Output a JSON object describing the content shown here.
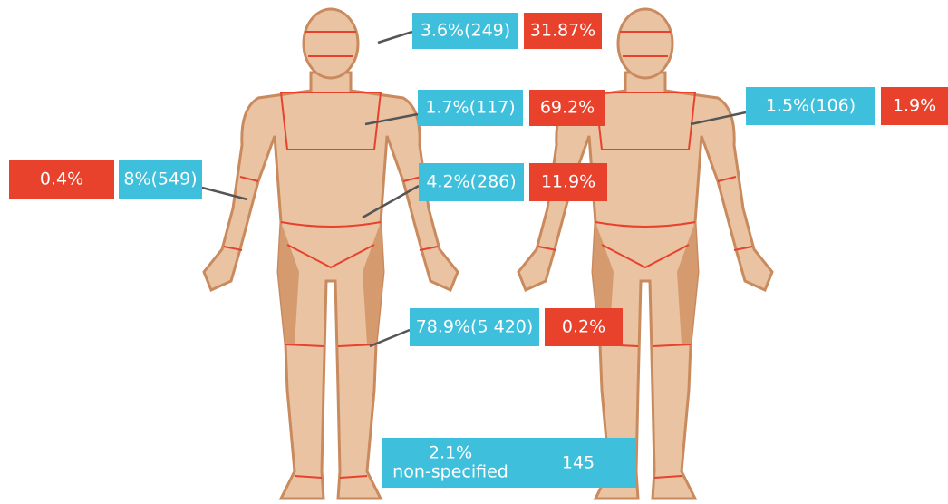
{
  "callouts": [
    {
      "count_label": "3.6%(249)",
      "rate_label": "31.87%"
    },
    {
      "count_label": "1.7%(117)",
      "rate_label": "69.2%"
    },
    {
      "count_label": "1.5%(106)",
      "rate_label": "1.9%"
    },
    {
      "count_label": "8%(549)",
      "rate_label": "0.4%"
    },
    {
      "count_label": "4.2%(286)",
      "rate_label": "11.9%"
    },
    {
      "count_label": "78.9%(5 420)",
      "rate_label": "0.2%"
    }
  ],
  "unspecified": {
    "percent": "2.1%",
    "label": "non-specified",
    "count": "145"
  }
}
